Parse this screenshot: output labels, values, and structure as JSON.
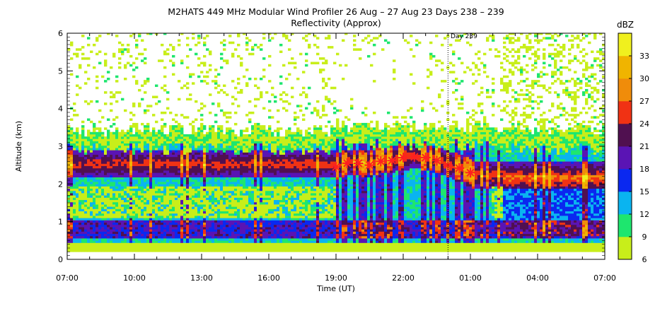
{
  "chart_data": {
    "type": "heatmap",
    "title": "M2HATS 449 MHz Modular Wind Profiler  26 Aug – 27 Aug 23 Days 238 – 239",
    "subtitle": "Reflectivity (Approx)",
    "xlabel": "Time (UT)",
    "ylabel": "Altitude (km)",
    "x_tick_labels": [
      "07:00",
      "10:00",
      "13:00",
      "16:00",
      "19:00",
      "22:00",
      "01:00",
      "04:00",
      "07:00"
    ],
    "x_range_hours": [
      0,
      24
    ],
    "y_ticks": [
      0,
      1,
      2,
      3,
      4,
      5,
      6
    ],
    "ylim": [
      0,
      6
    ],
    "colorbar": {
      "unit": "dBZ",
      "tick_labels": [
        "6",
        "9",
        "12",
        "15",
        "18",
        "21",
        "24",
        "27",
        "30",
        "33"
      ],
      "bins": [
        {
          "low": 6,
          "high": 9,
          "color": "#c8ee1a"
        },
        {
          "low": 9,
          "high": 12,
          "color": "#1ee66e"
        },
        {
          "low": 12,
          "high": 15,
          "color": "#0ab4f0"
        },
        {
          "low": 15,
          "high": 18,
          "color": "#0a28f0"
        },
        {
          "low": 18,
          "high": 21,
          "color": "#5a14b4"
        },
        {
          "low": 21,
          "high": 24,
          "color": "#501050"
        },
        {
          "low": 24,
          "high": 27,
          "color": "#f03214"
        },
        {
          "low": 27,
          "high": 30,
          "color": "#f08c0a"
        },
        {
          "low": 30,
          "high": 33,
          "color": "#f0b400"
        },
        {
          "low": 33,
          "high": 36,
          "color": "#f0f01e"
        }
      ]
    },
    "day_marker": {
      "label": "Day 239",
      "x_hours": 17
    },
    "bright_band_markers": {
      "x_hours": [
        12.0,
        12.5,
        13.0,
        13.5,
        14.0,
        14.5,
        15.0,
        15.5,
        16.0,
        16.5,
        17.0,
        17.5,
        18.0
      ],
      "altitude_km": [
        2.45,
        2.55,
        2.55,
        2.5,
        2.6,
        2.62,
        2.7,
        2.72,
        2.7,
        2.62,
        2.5,
        2.42,
        2.3
      ]
    },
    "echo_layers": [
      {
        "from_hours": 0,
        "to_hours": 24,
        "base_km": 0.4,
        "top_km": 2.9,
        "peak_km": 2.5
      },
      {
        "from_hours": 12,
        "to_hours": 19,
        "base_km": 0.3,
        "top_km": 3.0,
        "peak_km": 2.6
      }
    ]
  },
  "colors": {
    "background": "#ffffff",
    "marker": "#ff2020"
  }
}
